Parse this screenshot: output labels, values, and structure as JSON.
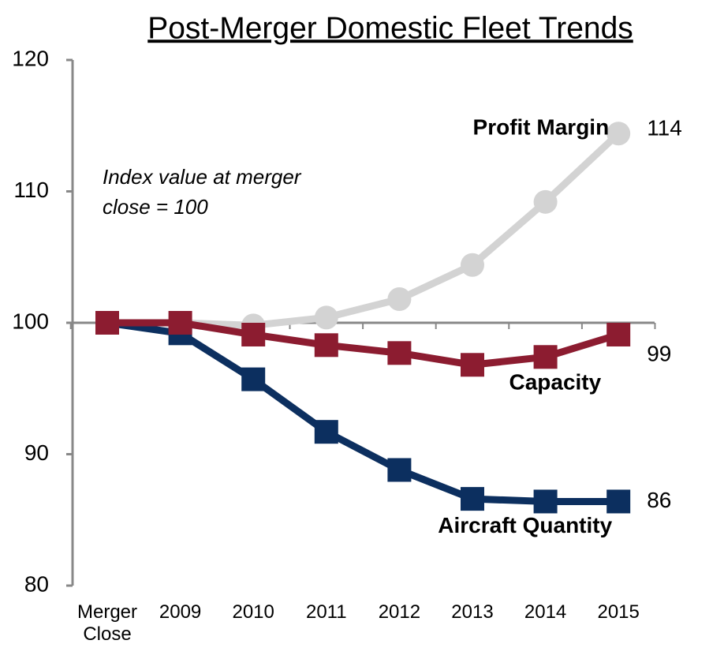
{
  "chart_data": {
    "type": "line",
    "title": "Post-Merger Domestic Fleet Trends",
    "annotation": [
      "Index value at merger",
      "close = 100"
    ],
    "categories": [
      "Merger Close",
      "2009",
      "2010",
      "2011",
      "2012",
      "2013",
      "2014",
      "2015"
    ],
    "series": [
      {
        "name": "Profit Margin",
        "color": "#d3d3d3",
        "marker": "circle",
        "values": [
          100,
          100,
          99.8,
          100.4,
          101.8,
          104.4,
          109.2,
          114.4
        ],
        "value_labels": [
          null,
          null,
          null,
          null,
          null,
          null,
          null,
          "114"
        ]
      },
      {
        "name": "Aircraft Quantity",
        "color": "#0c2f5f",
        "marker": "square",
        "values": [
          100,
          99.2,
          95.7,
          91.7,
          88.8,
          86.6,
          86.4,
          86.4
        ],
        "value_labels": [
          null,
          null,
          null,
          null,
          null,
          null,
          null,
          "86"
        ]
      },
      {
        "name": "Capacity",
        "color": "#8c1c30",
        "marker": "square",
        "values": [
          100,
          100,
          99.1,
          98.3,
          97.7,
          96.8,
          97.4,
          99.1
        ],
        "value_labels": [
          null,
          null,
          null,
          null,
          null,
          null,
          null,
          "99"
        ]
      }
    ],
    "ylim": [
      80,
      120
    ],
    "yticks": [
      80,
      90,
      100,
      110,
      120
    ],
    "xaxis_at": 100,
    "grid": false
  }
}
